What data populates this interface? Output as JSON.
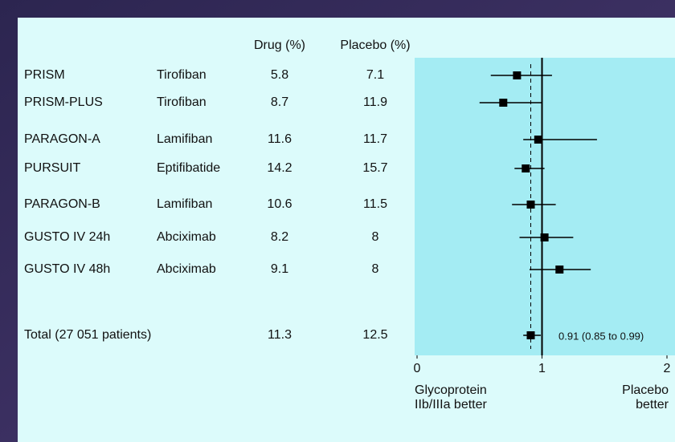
{
  "chart_data": {
    "type": "forest",
    "column_headers": [
      "Drug (%)",
      "Placebo (%)"
    ],
    "rows": [
      {
        "study": "PRISM",
        "drug_name": "Tirofiban",
        "drug": 5.8,
        "placebo": 7.1,
        "or": 0.8,
        "lo": 0.59,
        "hi": 1.08
      },
      {
        "study": "PRISM-PLUS",
        "drug_name": "Tirofiban",
        "drug": 8.7,
        "placebo": 11.9,
        "or": 0.69,
        "lo": 0.5,
        "hi": 1.0
      },
      {
        "study": "PARAGON-A",
        "drug_name": "Lamifiban",
        "drug": 11.6,
        "placebo": 11.7,
        "or": 0.97,
        "lo": 0.85,
        "hi": 1.44
      },
      {
        "study": "PURSUIT",
        "drug_name": "Eptifibatide",
        "drug": 14.2,
        "placebo": 15.7,
        "or": 0.87,
        "lo": 0.78,
        "hi": 1.02
      },
      {
        "study": "PARAGON-B",
        "drug_name": "Lamifiban",
        "drug": 10.6,
        "placebo": 11.5,
        "or": 0.91,
        "lo": 0.76,
        "hi": 1.11
      },
      {
        "study": "GUSTO IV 24h",
        "drug_name": "Abciximab",
        "drug": 8.2,
        "placebo": 8,
        "or": 1.02,
        "lo": 0.82,
        "hi": 1.25
      },
      {
        "study": "GUSTO IV 48h",
        "drug_name": "Abciximab",
        "drug": 9.1,
        "placebo": 8,
        "or": 1.14,
        "lo": 0.9,
        "hi": 1.39
      }
    ],
    "total": {
      "study": "Total (27 051 patients)",
      "drug": 11.3,
      "placebo": 12.5,
      "or": 0.91,
      "lo": 0.85,
      "hi": 0.99,
      "label": "0.91 (0.85 to 0.99)"
    },
    "xlim": [
      0,
      2
    ],
    "xticks": [
      0,
      1,
      2
    ],
    "reference_line": 1,
    "left_label": [
      "Glycoprotein",
      "IIb/IIIa better"
    ],
    "right_label": [
      "Placebo",
      "better"
    ]
  }
}
